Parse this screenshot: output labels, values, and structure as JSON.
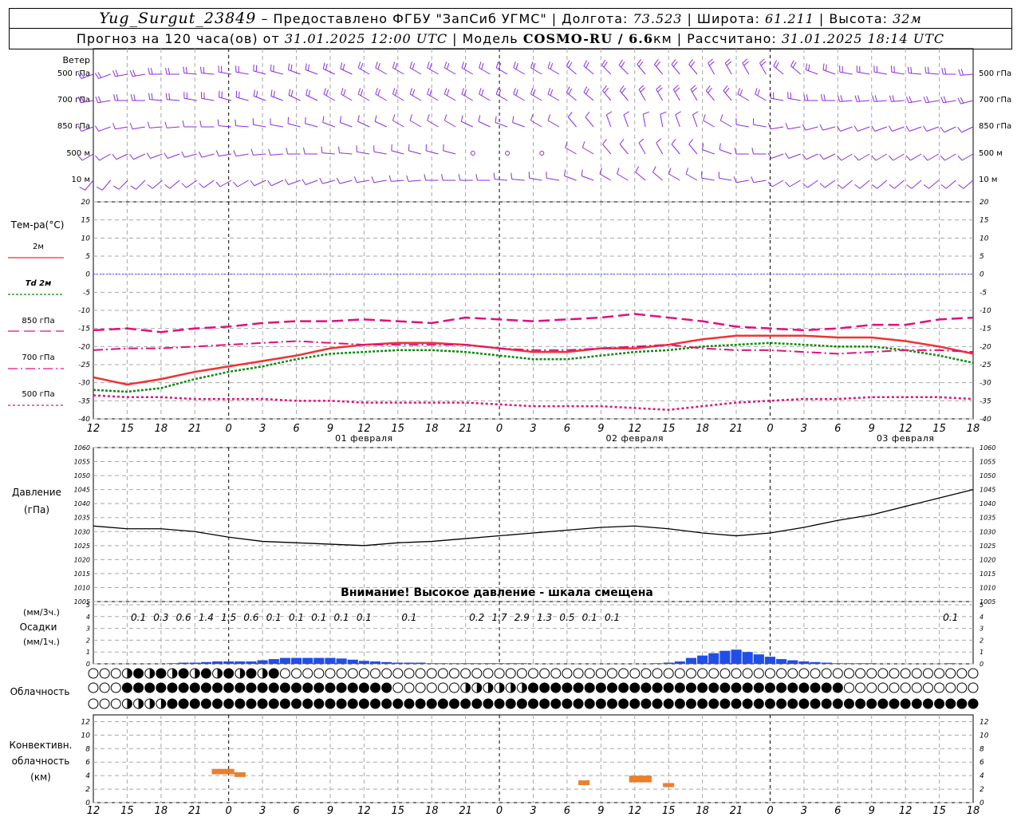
{
  "header": {
    "station": "Yug_Surgut_23849",
    "provider_prefix": "– Предоставлено ФГБУ \"ЗапСиб УГМС\"",
    "lon_label": "Долгота:",
    "lon": "73.523",
    "lat_label": "Широта:",
    "lat": "61.211",
    "alt_label": "Высота:",
    "alt": "32м",
    "forecast_label": "Прогноз на 120 часа(ов) от",
    "forecast_from": "31.01.2025 12:00 UTC",
    "model_label": "Модель",
    "model": "COSMO-RU / 6.6",
    "model_unit": "км",
    "calc_label": "Рассчитано:",
    "calc_time": "31.01.2025 18:14 UTC"
  },
  "colors": {
    "wind": "#8a2be2",
    "t2m": "#ee3333",
    "td2m": "#118811",
    "t850": "#e0107a",
    "t700": "#e0107a",
    "t500": "#e0107a",
    "pressure": "#000000",
    "precip": "#1f4fe8",
    "conv": "#e88030",
    "zero": "#3355ff",
    "grid": "#a8a8a8"
  },
  "time_axis": {
    "hour_labels": [
      "12",
      "15",
      "18",
      "21",
      "0",
      "3",
      "6",
      "9",
      "12",
      "15",
      "18",
      "21",
      "0",
      "3",
      "6",
      "9",
      "12",
      "15",
      "18",
      "21",
      "0",
      "3",
      "6",
      "9",
      "12",
      "15",
      "18"
    ],
    "date_labels": [
      "01 февраля",
      "02 февраля",
      "03 февраля"
    ]
  },
  "wind_panel": {
    "title": "Ветер",
    "levels": [
      "500 гПа",
      "700 гПа",
      "850 гПа",
      "500 м",
      "10  м"
    ]
  },
  "temp_panel": {
    "title": "Тем-ра(°C)",
    "legend": [
      "2м",
      "Td  2м",
      "850 гПа",
      "700 гПа",
      "500 гПа"
    ],
    "y_ticks": [
      "20",
      "15",
      "10",
      "5",
      "0",
      "-5",
      "-10",
      "-15",
      "-20",
      "-25",
      "-30",
      "-35",
      "-40"
    ]
  },
  "pressure_panel": {
    "title": "Давление",
    "unit": "(гПа)",
    "y_ticks": [
      "1060",
      "1055",
      "1050",
      "1045",
      "1040",
      "1035",
      "1030",
      "1025",
      "1020",
      "1015",
      "1010",
      "1005"
    ],
    "warning": "Внимание! Высокое давление - шкала смещена"
  },
  "precip_panel": {
    "unit3h": "(мм/3ч.)",
    "title": "Осадки",
    "unit1h": "(мм/1ч.)",
    "y_ticks": [
      "5",
      "4",
      "3",
      "2",
      "1",
      "0"
    ],
    "totals_3h": [
      "0.1",
      "0.3",
      "0.6",
      "1.4",
      "1.5",
      "0.6",
      "0.1",
      "0.1",
      "0.1",
      "0.1",
      "0.1",
      "0.1",
      "0.2",
      "1.7",
      "2.9",
      "1.3",
      "0.5",
      "0.1",
      "0.1",
      "0.1"
    ]
  },
  "cloud_panel": {
    "title": "Облачность"
  },
  "conv_panel": {
    "title_1": "Конвективн.",
    "title_2": "облачность",
    "unit": "(км)",
    "y_ticks": [
      "12",
      "10",
      "8",
      "6",
      "4",
      "2",
      "0"
    ]
  },
  "chart_data": [
    {
      "type": "line",
      "title": "Тем-ра(°C)",
      "x_hours": [
        0,
        3,
        6,
        9,
        12,
        15,
        18,
        21,
        24,
        27,
        30,
        33,
        36,
        39,
        42,
        45,
        48,
        51,
        54,
        57,
        60,
        63,
        66,
        69,
        72,
        75,
        78
      ],
      "ylim": [
        -40,
        20
      ],
      "series": [
        {
          "name": "2м",
          "values": [
            -28.5,
            -30.5,
            -29,
            -27,
            -25.5,
            -24,
            -22.5,
            -20.5,
            -19.5,
            -19,
            -19,
            -19.5,
            -20.5,
            -21.5,
            -21.5,
            -20.5,
            -20.5,
            -19.5,
            -18,
            -17,
            -17,
            -17,
            -17.5,
            -17.5,
            -18.5,
            -20,
            -22
          ]
        },
        {
          "name": "Td  2м",
          "values": [
            -32,
            -32.5,
            -31.5,
            -29,
            -27,
            -25.5,
            -23.5,
            -22,
            -21.5,
            -21,
            -21,
            -21.5,
            -22.5,
            -23.5,
            -23.5,
            -22.5,
            -21.5,
            -21,
            -20,
            -19.5,
            -19,
            -19.5,
            -20,
            -20,
            -21,
            -22.5,
            -24.5
          ]
        },
        {
          "name": "850 гПа",
          "values": [
            -15.5,
            -15,
            -16,
            -15,
            -14.5,
            -13.5,
            -13,
            -13,
            -12.5,
            -13,
            -13.5,
            -12,
            -12.5,
            -13,
            -12.5,
            -12,
            -11,
            -12,
            -13,
            -14.5,
            -15,
            -15.5,
            -15,
            -14,
            -14,
            -12.5,
            -12
          ]
        },
        {
          "name": "700 гПа",
          "values": [
            -21,
            -20.5,
            -20.5,
            -20,
            -19.5,
            -19,
            -18.5,
            -19,
            -19.5,
            -19.5,
            -19.5,
            -19.5,
            -20.5,
            -21,
            -21,
            -20.5,
            -20,
            -19.5,
            -20.5,
            -21,
            -21,
            -21.5,
            -22,
            -21.5,
            -21,
            -21,
            -21.5
          ]
        },
        {
          "name": "500 гПа",
          "values": [
            -33.5,
            -34,
            -34,
            -34.5,
            -34.5,
            -34.5,
            -35,
            -35,
            -35.5,
            -35.5,
            -35.5,
            -35.5,
            -36,
            -36.5,
            -36.5,
            -36.5,
            -37,
            -37.5,
            -36.5,
            -35.5,
            -35,
            -34.5,
            -34.5,
            -34,
            -34,
            -34,
            -34.5
          ]
        }
      ]
    },
    {
      "type": "line",
      "title": "Давление",
      "x_hours": [
        0,
        3,
        6,
        9,
        12,
        15,
        18,
        21,
        24,
        27,
        30,
        33,
        36,
        39,
        42,
        45,
        48,
        51,
        54,
        57,
        60,
        63,
        66,
        69,
        72,
        75,
        78
      ],
      "ylim": [
        1005,
        1060
      ],
      "series": [
        {
          "name": "",
          "values": [
            1032,
            1031,
            1031,
            1030,
            1028,
            1026.5,
            1026,
            1025.5,
            1025,
            1026,
            1026.5,
            1027.5,
            1028.5,
            1029.5,
            1030.5,
            1031.5,
            1032,
            1031,
            1029.5,
            1028.5,
            1029.5,
            1031.5,
            1034,
            1036,
            1039,
            1042,
            1045
          ]
        }
      ]
    },
    {
      "type": "bar",
      "title": "Осадки",
      "x_hours": [
        0,
        1,
        2,
        3,
        4,
        5,
        6,
        7,
        8,
        9,
        10,
        11,
        12,
        13,
        14,
        15,
        16,
        17,
        18,
        19,
        20,
        21,
        22,
        23,
        24,
        25,
        26,
        27,
        28,
        29,
        30,
        31,
        32,
        33,
        34,
        35,
        36,
        37,
        38,
        39,
        40,
        41,
        42,
        43,
        44,
        45,
        46,
        47,
        48,
        49,
        50,
        51,
        52,
        53,
        54,
        55,
        56,
        57,
        58,
        59,
        60,
        61,
        62,
        63,
        64,
        65,
        66,
        67,
        68,
        69,
        70,
        71,
        72,
        73,
        74,
        75,
        76,
        77,
        78
      ],
      "ylim": [
        0,
        5
      ],
      "series": [
        {
          "name": "",
          "values": [
            0,
            0,
            0,
            0,
            0,
            0,
            0,
            0.05,
            0.1,
            0.1,
            0.15,
            0.2,
            0.2,
            0.2,
            0.2,
            0.3,
            0.4,
            0.5,
            0.5,
            0.5,
            0.5,
            0.5,
            0.45,
            0.35,
            0.25,
            0.2,
            0.15,
            0.1,
            0.1,
            0.1,
            0.05,
            0.05,
            0.05,
            0.05,
            0.05,
            0.05,
            0.05,
            0.05,
            0.05,
            0,
            0,
            0,
            0,
            0,
            0,
            0,
            0,
            0,
            0,
            0,
            0.05,
            0.1,
            0.2,
            0.5,
            0.7,
            0.9,
            1.1,
            1.2,
            1.0,
            0.8,
            0.6,
            0.4,
            0.3,
            0.2,
            0.15,
            0.1,
            0.05,
            0.05,
            0.05,
            0.05,
            0,
            0,
            0,
            0,
            0,
            0,
            0.05,
            0,
            0
          ]
        }
      ]
    },
    {
      "type": "bar",
      "title": "Конвективн. облачность",
      "unit": "км",
      "ylim": [
        0,
        13
      ],
      "series": [
        {
          "name": "",
          "values": [
            {
              "x_start": 10.5,
              "x_end": 12.5,
              "bottom": 4.2,
              "top": 5.0
            },
            {
              "x_start": 12.5,
              "x_end": 13.5,
              "bottom": 3.8,
              "top": 4.5
            },
            {
              "x_start": 43,
              "x_end": 44,
              "bottom": 2.6,
              "top": 3.3
            },
            {
              "x_start": 47.5,
              "x_end": 49.5,
              "bottom": 3.0,
              "top": 4.0
            },
            {
              "x_start": 50.5,
              "x_end": 51.5,
              "bottom": 2.3,
              "top": 2.9
            }
          ]
        }
      ]
    }
  ]
}
